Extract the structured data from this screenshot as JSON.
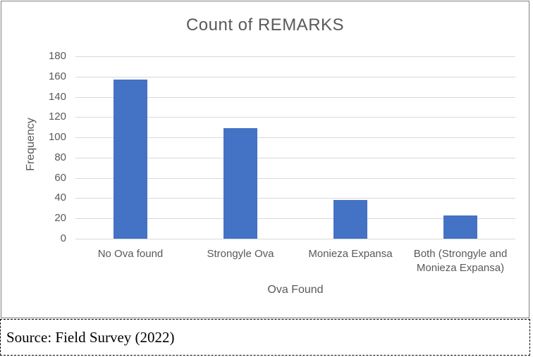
{
  "chart_data": {
    "type": "bar",
    "title": "Count of REMARKS",
    "xlabel": "Ova Found",
    "ylabel": "Frequency",
    "categories": [
      "No Ova found",
      "Strongyle Ova",
      "Monieza Expansa",
      "Both (Strongyle and Monieza Expansa)"
    ],
    "values": [
      157,
      109,
      38,
      23
    ],
    "ylim": [
      0,
      180
    ],
    "ytick_step": 20,
    "yticks": [
      0,
      20,
      40,
      60,
      80,
      100,
      120,
      140,
      160,
      180
    ],
    "grid": true,
    "legend": "none",
    "bar_color": "#4472C4",
    "gridline_color": "#D9D9D9",
    "text_color": "#595959"
  },
  "source": {
    "text": "Source: Field Survey (2022)"
  }
}
